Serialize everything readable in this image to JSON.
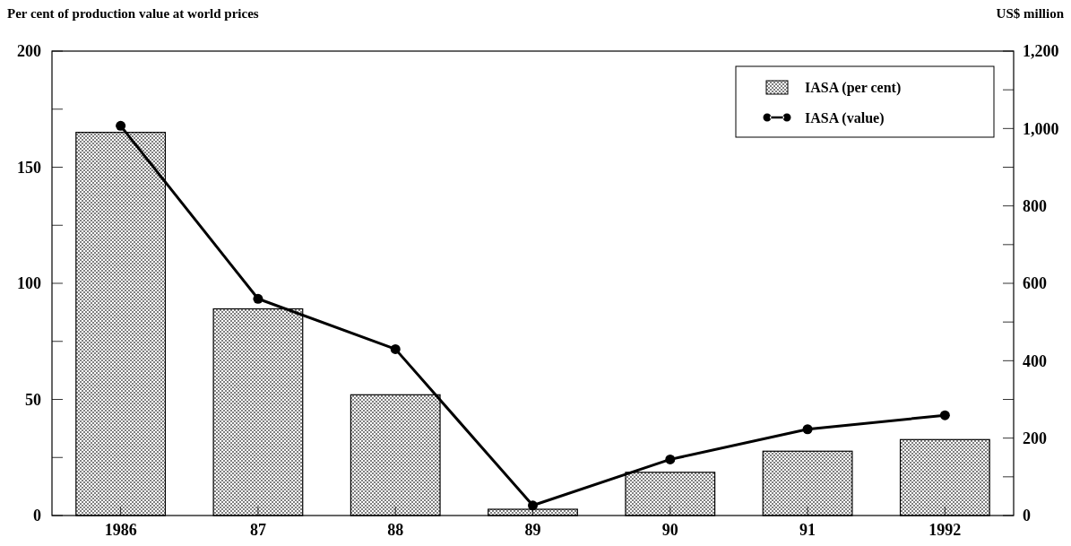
{
  "chart_data": {
    "type": "bar",
    "ylabel": "Per cent of production value at world prices",
    "y2label": "US$ million",
    "categories": [
      "1986",
      "87",
      "88",
      "89",
      "90",
      "91",
      "1992"
    ],
    "series": [
      {
        "name": "IASA (per cent)",
        "color": "#000000",
        "values": [
          165,
          89,
          52,
          2.7,
          18.6,
          27.7,
          32.7
        ]
      },
      {
        "name": "IASA (value)",
        "type": "line",
        "axis": "y2",
        "color": "#000000",
        "marker": "circle",
        "values": [
          1007,
          560,
          430,
          26,
          145,
          223,
          259
        ]
      }
    ],
    "ylim": [
      0,
      200
    ],
    "yticks": [
      0,
      {
        "value": 25,
        "label": null
      },
      50,
      {
        "value": 75,
        "label": null
      },
      100,
      {
        "value": 125,
        "label": null
      },
      150,
      {
        "value": 175,
        "label": null
      },
      200
    ],
    "y2lim": [
      0,
      1200
    ],
    "y2ticks": [
      {
        "value": 0,
        "label": "0"
      },
      {
        "value": 100,
        "label": null
      },
      {
        "value": 200,
        "label": "200"
      },
      {
        "value": 300,
        "label": null
      },
      {
        "value": 400,
        "label": "400"
      },
      {
        "value": 500,
        "label": null
      },
      {
        "value": 600,
        "label": "600"
      },
      {
        "value": 700,
        "label": null
      },
      {
        "value": 800,
        "label": "800"
      },
      {
        "value": 900,
        "label": null
      },
      {
        "value": 1000,
        "label": "1,000"
      },
      {
        "value": 1100,
        "label": null
      },
      {
        "value": 1200,
        "label": "1,200"
      }
    ],
    "legend": "top right",
    "grid": false
  }
}
